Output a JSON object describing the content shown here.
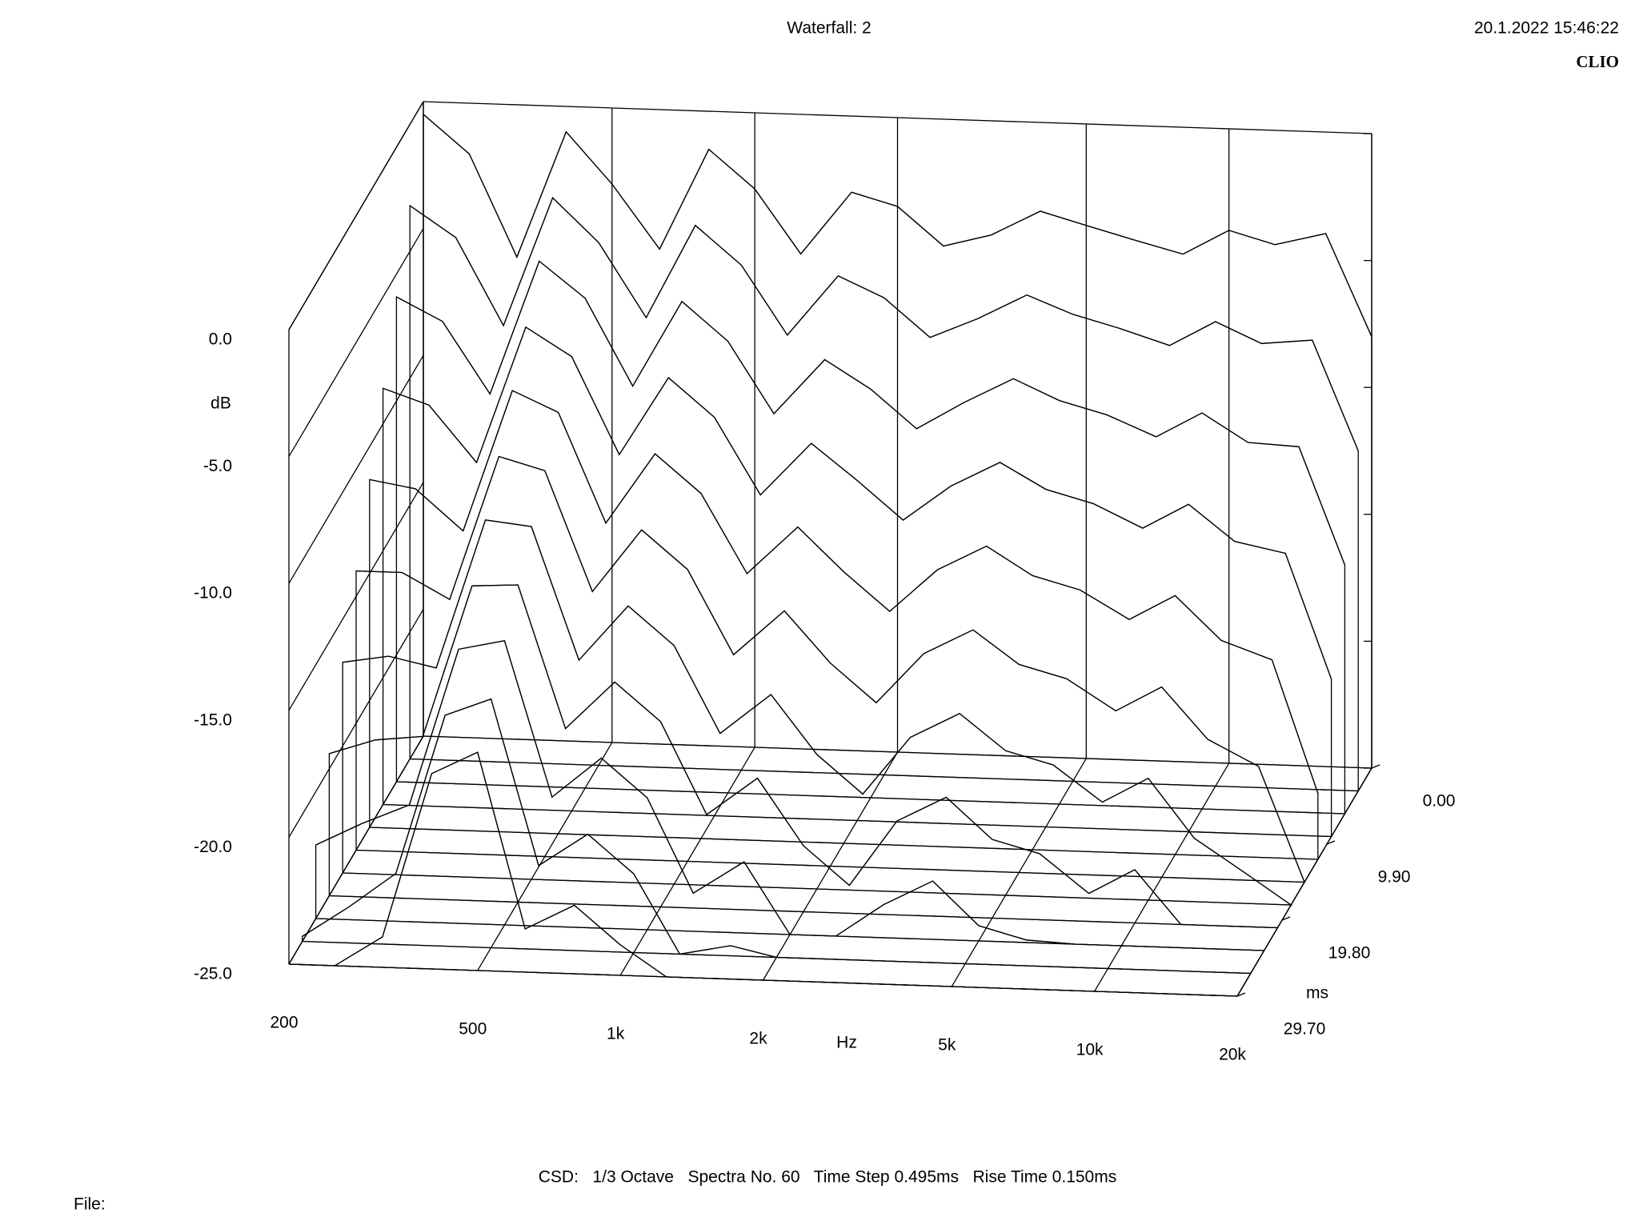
{
  "chart_data": {
    "type": "waterfall",
    "title": "Waterfall: 2",
    "timestamp": "20.1.2022 15:46:22",
    "brand": "CLIO",
    "footnote": "CSD:   1/3 Octave   Spectra No. 60   Time Step 0.495ms   Rise Time 0.150ms",
    "file_label": "File:",
    "x_label": "Hz",
    "y_label": "dB",
    "z_label": "ms",
    "color": "#000000",
    "xscale": "log",
    "x": [
      200,
      250,
      315,
      400,
      500,
      630,
      800,
      1000,
      1250,
      1600,
      2000,
      2500,
      3150,
      4000,
      5000,
      6300,
      8000,
      10000,
      12500,
      16000,
      20000
    ],
    "xlim": [
      200,
      20000
    ],
    "xticks": [
      200,
      500,
      {
        "value": 1000,
        "label": "1k"
      },
      {
        "value": 2000,
        "label": "2k"
      },
      {
        "value": 5000,
        "label": "5k"
      },
      {
        "value": 10000,
        "label": "10k"
      },
      {
        "value": 20000,
        "label": "20k"
      }
    ],
    "ylim": [
      -25,
      0
    ],
    "yticks": [
      {
        "value": 0,
        "label": "0.0"
      },
      {
        "value": -5,
        "label": "-5.0"
      },
      {
        "value": -10,
        "label": "-10.0"
      },
      {
        "value": -15,
        "label": "-15.0"
      },
      {
        "value": -20,
        "label": "-20.0"
      },
      {
        "value": -25,
        "label": "-25.0"
      }
    ],
    "zlim": [
      0,
      29.7
    ],
    "zticks": [
      {
        "value": 0,
        "label": "0.00"
      },
      {
        "value": 9.9,
        "label": "9.90"
      },
      {
        "value": 19.8,
        "label": "19.80"
      },
      {
        "value": 29.7,
        "label": "29.70"
      }
    ],
    "slices": [
      {
        "time": 0,
        "values": [
          -0.5,
          -2,
          -6,
          -1,
          -3,
          -5.5,
          -1.5,
          -3,
          -5.5,
          -3,
          -3.5,
          -5,
          -4.5,
          -3.5,
          -4,
          -4.5,
          -5,
          -4,
          -4.5,
          -4,
          -8
        ]
      },
      {
        "time": 2.97,
        "values": [
          -3.2,
          -4.4,
          -7.8,
          -2.7,
          -4.4,
          -7.3,
          -3.6,
          -5.1,
          -7.8,
          -5.4,
          -6.2,
          -7.7,
          -6.9,
          -5.9,
          -6.6,
          -7.1,
          -7.7,
          -6.7,
          -7.5,
          -7.3,
          -11.6
        ]
      },
      {
        "time": 5.94,
        "values": [
          -5.9,
          -6.8,
          -9.6,
          -4.3,
          -5.7,
          -9.1,
          -5.7,
          -7.2,
          -10,
          -7.8,
          -8.9,
          -10.4,
          -9.3,
          -8.3,
          -9.1,
          -9.6,
          -10.4,
          -9.4,
          -10.5,
          -10.6,
          -15.2
        ]
      },
      {
        "time": 8.91,
        "values": [
          -8.6,
          -9.2,
          -11.4,
          -6,
          -7.1,
          -10.9,
          -7.8,
          -9.3,
          -12.3,
          -10.2,
          -11.6,
          -13.1,
          -11.7,
          -10.7,
          -11.7,
          -12.2,
          -13.1,
          -12.1,
          -13.5,
          -13.9,
          -18.8
        ]
      },
      {
        "time": 11.88,
        "values": [
          -11.3,
          -11.6,
          -13.2,
          -7.6,
          -8.4,
          -12.7,
          -9.9,
          -11.4,
          -14.5,
          -12.6,
          -14.3,
          -15.8,
          -14.1,
          -13.1,
          -14.2,
          -14.7,
          -15.8,
          -14.8,
          -16.5,
          -17.2,
          -22.4
        ]
      },
      {
        "time": 14.85,
        "values": [
          -14,
          -14,
          -15,
          -9.3,
          -9.8,
          -14.5,
          -12,
          -13.5,
          -16.8,
          -15,
          -17,
          -18.5,
          -16.5,
          -15.5,
          -16.8,
          -17.3,
          -18.5,
          -17.5,
          -19.5,
          -20.5,
          -25
        ]
      },
      {
        "time": 17.82,
        "values": [
          -16.7,
          -16.4,
          -16.8,
          -10.9,
          -11.1,
          -16.3,
          -14.1,
          -15.6,
          -19,
          -17.4,
          -19.7,
          -21.2,
          -18.9,
          -17.9,
          -19.3,
          -19.8,
          -21.2,
          -20.2,
          -22.5,
          -23.8,
          -25
        ]
      },
      {
        "time": 20.79,
        "values": [
          -19.4,
          -18.8,
          -18.6,
          -12.6,
          -12.5,
          -18.1,
          -16.2,
          -17.7,
          -21.3,
          -19.8,
          -22.4,
          -23.9,
          -21.3,
          -20.3,
          -21.9,
          -22.4,
          -23.9,
          -22.9,
          -25,
          -25,
          -25
        ]
      },
      {
        "time": 23.76,
        "values": [
          -22.1,
          -21.2,
          -20.4,
          -14.2,
          -13.8,
          -19.9,
          -18.3,
          -19.8,
          -23.5,
          -22.2,
          -25,
          -25,
          -23.7,
          -22.7,
          -24.4,
          -24.9,
          -25,
          -25,
          -25,
          -25,
          -25
        ]
      },
      {
        "time": 26.73,
        "values": [
          -24.8,
          -23.6,
          -22.2,
          -15.9,
          -15.2,
          -21.7,
          -20.4,
          -21.9,
          -25,
          -24.6,
          -25,
          -25,
          -25,
          -25,
          -25,
          -25,
          -25,
          -25,
          -25,
          -25,
          -25
        ]
      },
      {
        "time": 29.7,
        "values": [
          -25,
          -25,
          -23.8,
          -17.3,
          -16.4,
          -23.3,
          -22.3,
          -23.8,
          -25,
          -25,
          -25,
          -25,
          -25,
          -25,
          -25,
          -25,
          -25,
          -25,
          -25,
          -25,
          -25
        ]
      }
    ]
  }
}
